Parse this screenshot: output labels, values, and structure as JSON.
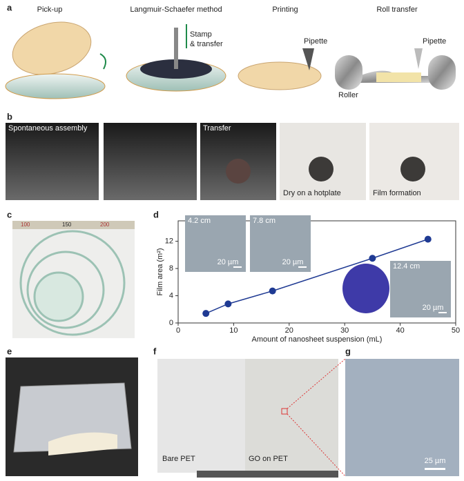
{
  "panels": {
    "a": {
      "label": "a",
      "captions": [
        "Pick-up",
        "Langmuir-Schaefer method",
        "Printing",
        "Roll transfer"
      ],
      "annotations": [
        "Stamp",
        "& transfer",
        "Pipette",
        "Pipette",
        "Roller"
      ]
    },
    "b": {
      "label": "b",
      "captions": [
        "Spontaneous assembly",
        "Transfer",
        "Dry on a hotplate",
        "Film formation"
      ]
    },
    "c": {
      "label": "c",
      "ruler": [
        "100",
        "150",
        "200"
      ]
    },
    "d": {
      "label": "d",
      "insets": [
        "4.2 cm",
        "7.8 cm",
        "12.4 cm"
      ],
      "scale": "20 µm"
    },
    "e": {
      "label": "e"
    },
    "f": {
      "label": "f",
      "captions": [
        "Bare PET",
        "GO on PET"
      ]
    },
    "g": {
      "label": "g",
      "scale": "25 µm"
    }
  },
  "chart_data": {
    "type": "line",
    "xlabel": "Amount of nanosheet suspension (mL)",
    "ylabel": "Film area (m²)",
    "x": [
      5,
      9,
      17,
      35,
      45
    ],
    "values": [
      1.4,
      2.8,
      4.7,
      9.5,
      12.3
    ],
    "color": "#1f3a93",
    "xlim": [
      0,
      50
    ],
    "ylim": [
      0,
      15
    ],
    "xticks": [
      0,
      10,
      20,
      30,
      40,
      50
    ],
    "yticks": [
      0,
      4,
      8,
      12
    ]
  }
}
